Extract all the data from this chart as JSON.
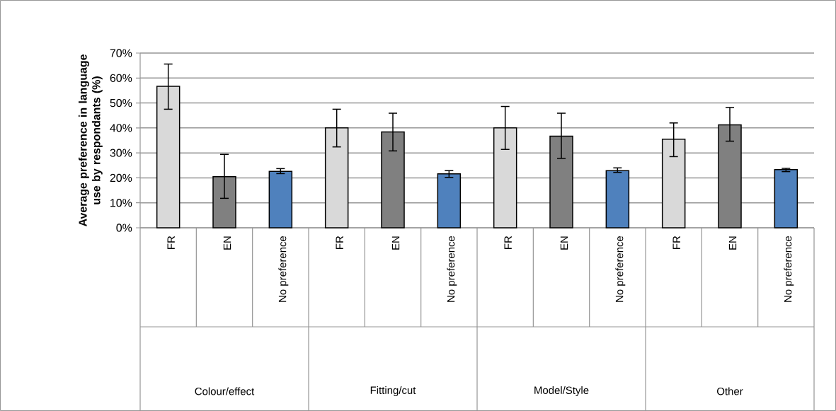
{
  "chart_data": {
    "type": "bar",
    "ylabel": "Average preference in language use by respondants (%)",
    "categories": [
      "FR",
      "EN",
      "No preference",
      "FR",
      "EN",
      "No preference",
      "FR",
      "EN",
      "No preference",
      "FR",
      "EN",
      "No preference"
    ],
    "values": [
      56.7,
      20.5,
      22.6,
      40,
      38.4,
      21.6,
      40,
      36.7,
      22.9,
      35.5,
      41.2,
      23.3
    ],
    "colors": [
      "#d9d9d9",
      "#808080",
      "#4f81bd",
      "#d9d9d9",
      "#808080",
      "#4f81bd",
      "#d9d9d9",
      "#808080",
      "#4f81bd",
      "#d9d9d9",
      "#808080",
      "#4f81bd"
    ],
    "errors": [
      [
        47.5,
        65.6
      ],
      [
        11.8,
        29.4
      ],
      [
        21.7,
        23.7
      ],
      [
        32.4,
        47.5
      ],
      [
        30.8,
        45.9
      ],
      [
        20.2,
        22.9
      ],
      [
        31.4,
        48.6
      ],
      [
        27.8,
        45.9
      ],
      [
        22.2,
        24
      ],
      [
        28.5,
        42
      ],
      [
        34.7,
        48.2
      ],
      [
        22.5,
        23.8
      ]
    ],
    "ylim": [
      0,
      70
    ],
    "yticks": [
      {
        "value": 0,
        "label": "0%"
      },
      {
        "value": 10,
        "label": "10%"
      },
      {
        "value": 20,
        "label": "20%"
      },
      {
        "value": 30,
        "label": "30%"
      },
      {
        "value": 40,
        "label": "40%"
      },
      {
        "value": 50,
        "label": "50%"
      },
      {
        "value": 60,
        "label": "60%"
      },
      {
        "value": 70,
        "label": "70%"
      }
    ],
    "grid": "y",
    "annotations": [
      "Colour/effect",
      "Fitting/cut",
      "Model/Style",
      "Other"
    ]
  }
}
